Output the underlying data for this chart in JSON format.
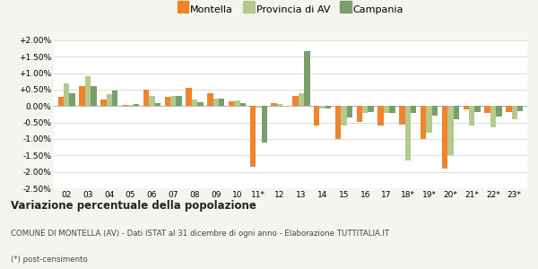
{
  "categories": [
    "02",
    "03",
    "04",
    "05",
    "06",
    "07",
    "08",
    "09",
    "10",
    "11*",
    "12",
    "13",
    "14",
    "15",
    "16",
    "17",
    "18*",
    "19*",
    "20*",
    "21*",
    "22*",
    "23*"
  ],
  "montella": [
    0.28,
    0.6,
    0.2,
    0.03,
    0.5,
    0.28,
    0.55,
    0.38,
    0.15,
    -1.85,
    0.08,
    0.32,
    -0.6,
    -1.0,
    -0.48,
    -0.6,
    -0.55,
    -1.0,
    -1.9,
    -0.1,
    -0.2,
    -0.18
  ],
  "provincia_av": [
    0.68,
    0.92,
    0.35,
    0.04,
    0.3,
    0.32,
    0.2,
    0.22,
    0.18,
    -0.05,
    0.05,
    0.4,
    -0.08,
    -0.6,
    -0.2,
    -0.2,
    -1.65,
    -0.8,
    -1.5,
    -0.6,
    -0.65,
    -0.4
  ],
  "campania": [
    0.38,
    0.62,
    0.48,
    0.06,
    0.1,
    0.3,
    0.12,
    0.22,
    0.1,
    -1.1,
    0.02,
    1.68,
    -0.08,
    -0.35,
    -0.18,
    -0.2,
    -0.22,
    -0.3,
    -0.4,
    -0.18,
    -0.32,
    -0.15
  ],
  "montella_color": "#f0842c",
  "provincia_color": "#b5c98e",
  "campania_color": "#7a9e6e",
  "title": "Variazione percentuale della popolazione",
  "subtitle": "COMUNE DI MONTELLA (AV) - Dati ISTAT al 31 dicembre di ogni anno - Elaborazione TUTTITALIA.IT",
  "footnote": "(*) post-censimento",
  "ylim": [
    -2.5,
    2.0
  ],
  "yticks": [
    -2.5,
    -2.0,
    -1.5,
    -1.0,
    -0.5,
    0.0,
    0.5,
    1.0,
    1.5,
    2.0
  ],
  "bg_color": "#f5f5f0",
  "plot_bg_color": "#ffffff"
}
